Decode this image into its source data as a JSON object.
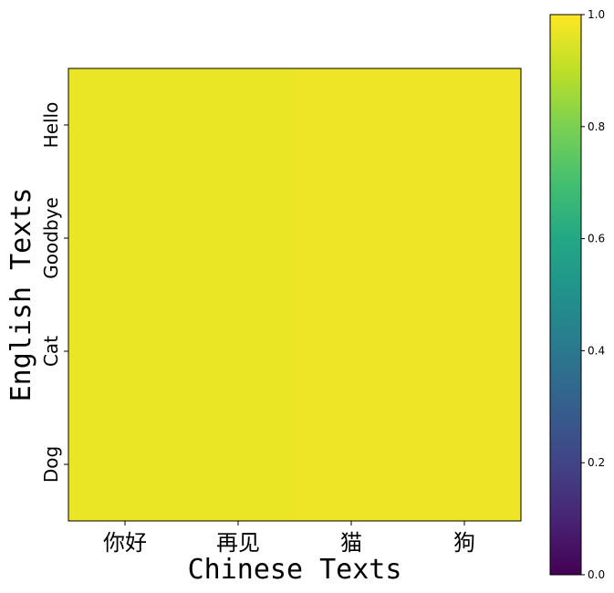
{
  "chart_data": {
    "type": "heatmap",
    "x_categories": [
      "你好",
      "再见",
      "猫",
      "狗"
    ],
    "y_categories": [
      "Hello",
      "Goodbye",
      "Cat",
      "Dog"
    ],
    "values": [
      [
        0.97,
        0.97,
        0.975,
        0.975
      ],
      [
        0.97,
        0.97,
        0.975,
        0.975
      ],
      [
        0.97,
        0.97,
        0.975,
        0.975
      ],
      [
        0.97,
        0.97,
        0.975,
        0.975
      ]
    ],
    "xlabel": "Chinese Texts",
    "ylabel": "English Texts",
    "colorbar": {
      "colormap": "viridis",
      "range": [
        0.0,
        1.0
      ],
      "ticks": [
        "0.0",
        "0.2",
        "0.4",
        "0.6",
        "0.8",
        "1.0"
      ]
    },
    "grid": false,
    "colors": {
      "viridis_low": "#440154",
      "viridis_high": "#fde725"
    }
  }
}
